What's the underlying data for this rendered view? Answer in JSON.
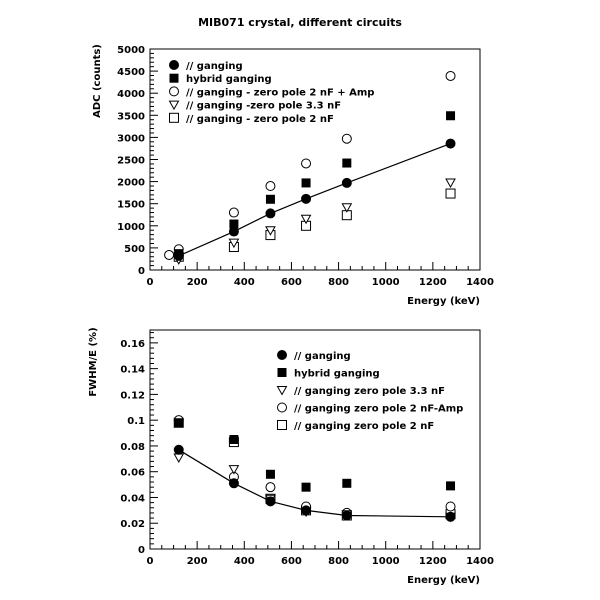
{
  "title": "MIB071 crystal, different circuits",
  "chart_data": [
    {
      "type": "scatter",
      "xlabel": "Energy (keV)",
      "ylabel": "ADC (counts)",
      "xlim": [
        0,
        1400
      ],
      "ylim": [
        0,
        5000
      ],
      "xticks": [
        "0",
        "200",
        "400",
        "600",
        "800",
        "1000",
        "1200",
        "1400"
      ],
      "yticks": [
        "0",
        "500",
        "1000",
        "1500",
        "2000",
        "2500",
        "3000",
        "3500",
        "4000",
        "4500",
        "5000"
      ],
      "legend_position": "top-left",
      "series": [
        {
          "name": "// ganging",
          "marker": "filled-circle",
          "fit_line": true,
          "x": [
            122,
            356,
            511,
            662,
            835,
            1275
          ],
          "y": [
            320,
            870,
            1280,
            1610,
            1970,
            2860
          ]
        },
        {
          "name": "hybrid ganging",
          "marker": "filled-square",
          "fit_line": false,
          "x": [
            122,
            356,
            511,
            662,
            835,
            1275
          ],
          "y": [
            370,
            1040,
            1600,
            1970,
            2420,
            3490
          ]
        },
        {
          "name": "// ganging - zero pole 2 nF + Amp",
          "marker": "open-circle",
          "fit_line": false,
          "x": [
            81,
            122,
            356,
            511,
            662,
            835,
            1275
          ],
          "y": [
            340,
            470,
            1300,
            1900,
            2410,
            2970,
            4390
          ]
        },
        {
          "name": "// ganging -zero pole 3.3 nF",
          "marker": "open-triangle-down",
          "fit_line": false,
          "x": [
            122,
            356,
            511,
            662,
            835,
            1275
          ],
          "y": [
            240,
            620,
            900,
            1160,
            1420,
            1980
          ]
        },
        {
          "name": "// ganging - zero pole 2 nF",
          "marker": "open-square",
          "fit_line": false,
          "x": [
            122,
            356,
            511,
            662,
            835,
            1275
          ],
          "y": [
            300,
            520,
            790,
            1000,
            1240,
            1730
          ]
        }
      ]
    },
    {
      "type": "scatter",
      "xlabel": "Energy (keV)",
      "ylabel": "FWHM/E (%)",
      "xlim": [
        0,
        1400
      ],
      "ylim": [
        0,
        0.17
      ],
      "xticks": [
        "0",
        "200",
        "400",
        "600",
        "800",
        "1000",
        "1200",
        "1400"
      ],
      "yticks": [
        "0",
        "0.02",
        "0.04",
        "0.06",
        "0.08",
        "0.1",
        "0.12",
        "0.14",
        "0.16"
      ],
      "legend_position": "top-right",
      "series": [
        {
          "name": "// ganging",
          "marker": "filled-circle",
          "fit_line": true,
          "x": [
            122,
            356,
            511,
            662,
            835,
            1275
          ],
          "y": [
            0.077,
            0.051,
            0.037,
            0.03,
            0.026,
            0.025
          ]
        },
        {
          "name": "hybrid ganging",
          "marker": "filled-square",
          "fit_line": false,
          "x": [
            122,
            356,
            511,
            662,
            835,
            1275
          ],
          "y": [
            0.098,
            0.085,
            0.058,
            0.048,
            0.051,
            0.049
          ]
        },
        {
          "name": "// ganging zero pole 3.3 nF",
          "marker": "open-triangle-down",
          "fit_line": false,
          "x": [
            122,
            356,
            511,
            662,
            835,
            1275
          ],
          "y": [
            0.071,
            0.062,
            0.039,
            0.029,
            0.027,
            0.025
          ]
        },
        {
          "name": "// ganging zero pole 2 nF-Amp",
          "marker": "open-circle",
          "fit_line": false,
          "x": [
            122,
            356,
            511,
            662,
            835,
            1275
          ],
          "y": [
            0.1,
            0.056,
            0.048,
            0.033,
            0.028,
            0.033
          ]
        },
        {
          "name": "// ganging zero pole 2 nF",
          "marker": "open-square",
          "fit_line": false,
          "x": [
            122,
            356,
            511,
            662,
            835,
            1275
          ],
          "y": [
            0.098,
            0.083,
            0.039,
            0.03,
            0.026,
            0.027
          ]
        }
      ]
    }
  ]
}
